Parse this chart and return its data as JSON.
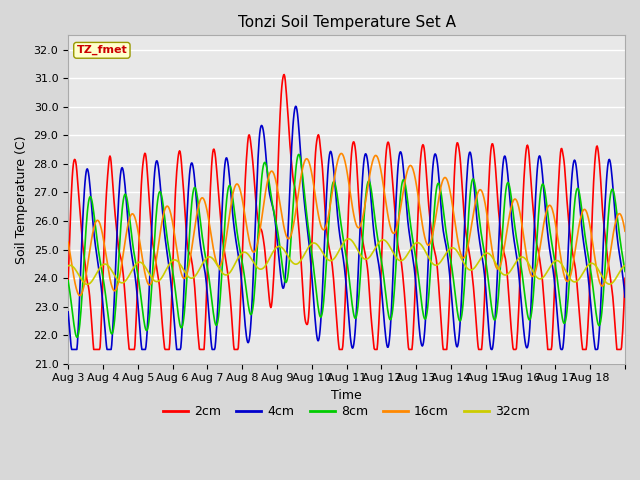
{
  "title": "Tonzi Soil Temperature Set A",
  "xlabel": "Time",
  "ylabel": "Soil Temperature (C)",
  "annotation": "TZ_fmet",
  "ylim": [
    21.0,
    32.5
  ],
  "yticks": [
    21.0,
    22.0,
    23.0,
    24.0,
    25.0,
    26.0,
    27.0,
    28.0,
    29.0,
    30.0,
    31.0,
    32.0
  ],
  "xtick_labels": [
    "Aug 3",
    "Aug 4",
    "Aug 5",
    "Aug 6",
    "Aug 7",
    "Aug 8",
    "Aug 9",
    "Aug 10",
    "Aug 11",
    "Aug 12",
    "Aug 13",
    "Aug 14",
    "Aug 15",
    "Aug 16",
    "Aug 17",
    "Aug 18"
  ],
  "legend_labels": [
    "2cm",
    "4cm",
    "8cm",
    "16cm",
    "32cm"
  ],
  "line_colors": [
    "#ff0000",
    "#0000cc",
    "#00cc00",
    "#ff8800",
    "#cccc00"
  ],
  "line_widths": [
    1.2,
    1.2,
    1.2,
    1.2,
    1.2
  ],
  "fig_facecolor": "#d8d8d8",
  "plot_bg_color": "#e8e8e8",
  "grid_color": "#ffffff",
  "title_fontsize": 11,
  "axis_label_fontsize": 9,
  "tick_fontsize": 8
}
